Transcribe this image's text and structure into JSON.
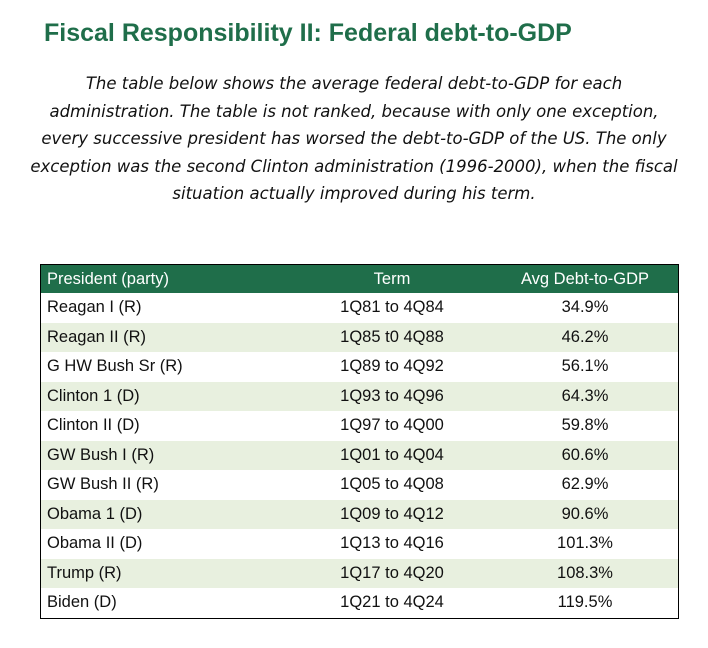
{
  "title": "Fiscal Responsibility II:  Federal debt-to-GDP",
  "intro": "The table below shows the average federal debt-to-GDP for each administration.  The table is not ranked, because with only one exception, every successive president has worsed the debt-to-GDP of the US.  The only exception was the second Clinton administration (1996-2000), when the fiscal situation actually improved during his term.",
  "colors": {
    "header_bg": "#1f6e4a",
    "band": "#e8f0df",
    "title": "#1f6e4a"
  },
  "table": {
    "headers": [
      "President (party)",
      "Term",
      "Avg Debt-to-GDP"
    ],
    "rows": [
      {
        "president": "Reagan I (R)",
        "term": "1Q81 to 4Q84",
        "debt": "34.9%"
      },
      {
        "president": "Reagan II (R)",
        "term": "1Q85 t0 4Q88",
        "debt": "46.2%"
      },
      {
        "president": "G HW Bush Sr (R)",
        "term": "1Q89 to 4Q92",
        "debt": "56.1%"
      },
      {
        "president": "Clinton 1 (D)",
        "term": "1Q93 to 4Q96",
        "debt": "64.3%"
      },
      {
        "president": "Clinton II (D)",
        "term": "1Q97 to 4Q00",
        "debt": "59.8%"
      },
      {
        "president": "GW Bush I (R)",
        "term": "1Q01 to 4Q04",
        "debt": "60.6%"
      },
      {
        "president": "GW Bush II (R)",
        "term": "1Q05 to 4Q08",
        "debt": "62.9%"
      },
      {
        "president": "Obama 1 (D)",
        "term": "1Q09 to 4Q12",
        "debt": "90.6%"
      },
      {
        "president": "Obama II (D)",
        "term": "1Q13 to 4Q16",
        "debt": "101.3%"
      },
      {
        "president": "Trump (R)",
        "term": "1Q17 to 4Q20",
        "debt": "108.3%"
      },
      {
        "president": "Biden (D)",
        "term": "1Q21 to 4Q24",
        "debt": "119.5%"
      }
    ]
  }
}
